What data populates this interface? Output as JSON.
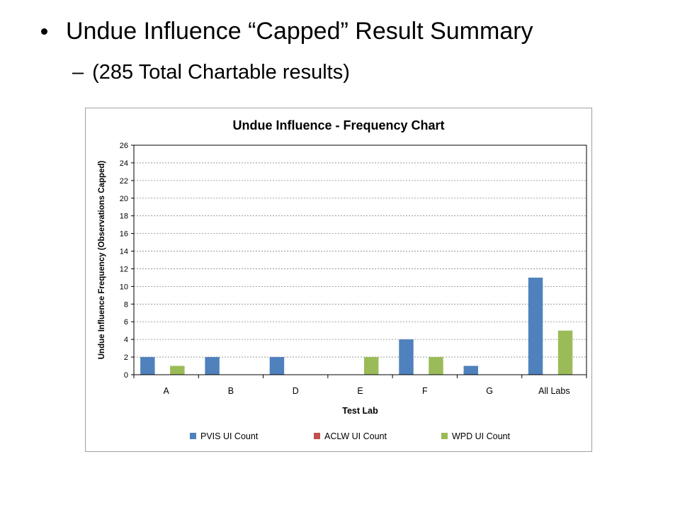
{
  "slide": {
    "bullet1": "Undue Influence “Capped” Result Summary",
    "bullet2_dash": "–",
    "bullet2": "(285 Total Chartable results)"
  },
  "chart_data": {
    "type": "bar",
    "title": "Undue Influence - Frequency Chart",
    "xlabel": "Test Lab",
    "ylabel": "Undue Influence Frequency (Observations Capped)",
    "categories": [
      "A",
      "B",
      "D",
      "E",
      "F",
      "G",
      "All Labs"
    ],
    "series": [
      {
        "name": "PVIS UI Count",
        "color": "#4f81bd",
        "values": [
          2,
          2,
          2,
          0,
          4,
          1,
          11
        ]
      },
      {
        "name": "ACLW UI Count",
        "color": "#c0504d",
        "values": [
          0,
          0,
          0,
          0,
          0,
          0,
          0
        ]
      },
      {
        "name": "WPD UI Count",
        "color": "#9bbb59",
        "values": [
          1,
          0,
          0,
          2,
          2,
          0,
          5
        ]
      }
    ],
    "ylim": [
      0,
      26
    ],
    "yticks": [
      0,
      2,
      4,
      6,
      8,
      10,
      12,
      14,
      16,
      18,
      20,
      22,
      24,
      26
    ],
    "grid": true,
    "legend_position": "bottom"
  }
}
